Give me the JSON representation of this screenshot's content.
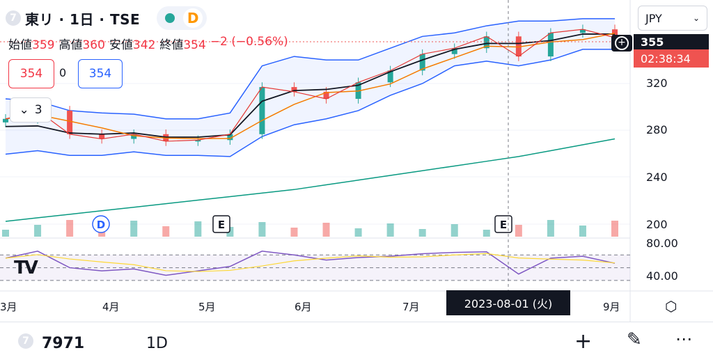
{
  "header": {
    "symbol_badge": "7",
    "title": "東リ · 1日 · TSE",
    "status_letter": "D"
  },
  "ohlc": {
    "open_label": "始値",
    "open": "359",
    "high_label": "高値",
    "high": "360",
    "low_label": "安値",
    "low": "342",
    "close_label": "終値",
    "close": "354",
    "change": "−2 (−0.56%)"
  },
  "quote": {
    "bid": "354",
    "spread": "0",
    "ask": "354"
  },
  "indicator_toggle": {
    "count": "3"
  },
  "currency": {
    "label": "JPY"
  },
  "price_tags": {
    "last": "355",
    "countdown": "02:38:34"
  },
  "price_axis": [
    "320",
    "280",
    "240",
    "200"
  ],
  "rsi_axis": [
    "80.00",
    "40.00"
  ],
  "time_axis": [
    "3月",
    "4月",
    "5月",
    "6月",
    "7月",
    "9月"
  ],
  "crosshair_date": "2023-08-01 (火)",
  "event_markers": {
    "dividend": "D",
    "earnings": "E"
  },
  "bottom_bar": {
    "symbol_badge": "7",
    "symbol": "7971",
    "interval": "1D"
  },
  "colors": {
    "up": "#26a69a",
    "down": "#ef5350",
    "bb": "#2962ff",
    "sma_long": "#089981",
    "ma_mid": "#f57c00",
    "ma_fast": "#e53935",
    "ma_slow": "#131722",
    "rsi": "#7e57c2",
    "rsi_ma": "#fdd835"
  },
  "chart_data": {
    "type": "candlestick",
    "x": [
      "2023-02-27",
      "2023-03-08",
      "2023-03-17",
      "2023-03-28",
      "2023-04-06",
      "2023-04-17",
      "2023-04-26",
      "2023-05-10",
      "2023-05-19",
      "2023-05-30",
      "2023-06-08",
      "2023-06-19",
      "2023-06-28",
      "2023-07-07",
      "2023-07-18",
      "2023-07-27",
      "2023-08-03",
      "2023-08-14",
      "2023-08-23",
      "2023-09-01"
    ],
    "close": [
      285,
      292,
      272,
      268,
      272,
      266,
      267,
      272,
      312,
      308,
      302,
      316,
      326,
      340,
      345,
      355,
      338,
      358,
      361,
      354
    ],
    "bb_upper": [
      302,
      300,
      292,
      290,
      289,
      285,
      285,
      290,
      330,
      338,
      335,
      335,
      345,
      355,
      358,
      364,
      368,
      368,
      370,
      370
    ],
    "bb_lower": [
      255,
      258,
      254,
      254,
      257,
      254,
      254,
      253,
      270,
      280,
      285,
      292,
      305,
      315,
      330,
      334,
      330,
      335,
      344,
      344
    ],
    "sma_long": [
      198,
      201,
      204,
      207,
      210,
      213,
      216,
      219,
      222,
      225,
      229,
      233,
      237,
      241,
      245,
      249,
      253,
      258,
      263,
      268
    ],
    "volume_spike_date": "2023-05-11",
    "rsi": [
      65,
      76,
      50,
      45,
      48,
      38,
      45,
      52,
      76,
      70,
      62,
      66,
      68,
      72,
      74,
      75,
      40,
      65,
      68,
      57
    ],
    "rsi_levels": [
      70,
      50,
      30
    ],
    "ylabel": "",
    "ylim": [
      185,
      380
    ],
    "rsi_ylim": [
      20,
      90
    ]
  }
}
